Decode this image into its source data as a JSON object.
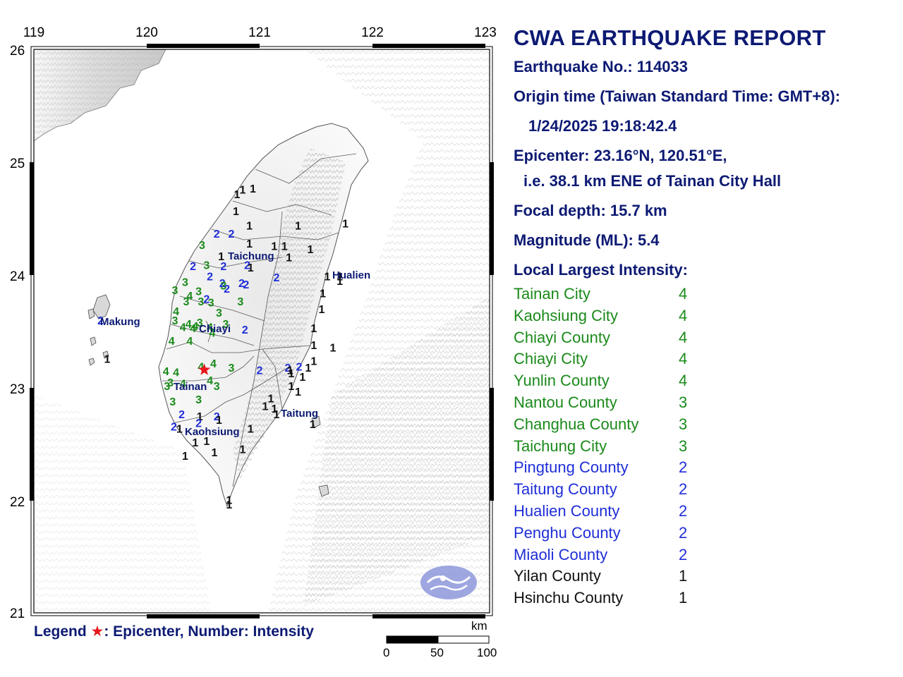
{
  "report": {
    "title": "CWA EARTHQUAKE REPORT",
    "earthquake_no": "Earthquake No.: 114033",
    "origin_time_label": "Origin time (Taiwan Standard Time: GMT+8):",
    "origin_time": "1/24/2025 19:18:42.4",
    "epicenter": "Epicenter: 23.16°N, 120.51°E,",
    "epicenter_ref": "i.e. 38.1 km ENE of Tainan City Hall",
    "focal_depth": "Focal depth: 15.7 km",
    "magnitude": "Magnitude (ML): 5.4",
    "intensity_heading": "Local Largest Intensity:"
  },
  "intensity_colors": {
    "4": "#1a8a1a",
    "3": "#1a8a1a",
    "2": "#1f2ed8",
    "1": "#111111"
  },
  "local_intensity": [
    {
      "region": "Tainan City",
      "value": "4"
    },
    {
      "region": "Kaohsiung City",
      "value": "4"
    },
    {
      "region": "Chiayi County",
      "value": "4"
    },
    {
      "region": "Chiayi City",
      "value": "4"
    },
    {
      "region": "Yunlin County",
      "value": "4"
    },
    {
      "region": "Nantou County",
      "value": "3"
    },
    {
      "region": "Changhua County",
      "value": "3"
    },
    {
      "region": "Taichung City",
      "value": "3"
    },
    {
      "region": "Pingtung County",
      "value": "2"
    },
    {
      "region": "Taitung County",
      "value": "2"
    },
    {
      "region": "Hualien County",
      "value": "2"
    },
    {
      "region": "Penghu County",
      "value": "2"
    },
    {
      "region": "Miaoli County",
      "value": "2"
    },
    {
      "region": "Yilan County",
      "value": "1"
    },
    {
      "region": "Hsinchu County",
      "value": "1"
    }
  ],
  "map": {
    "lon_ticks": [
      "119",
      "120",
      "121",
      "122",
      "123"
    ],
    "lat_ticks": [
      "26",
      "25",
      "24",
      "23",
      "22",
      "21"
    ],
    "cities": [
      "Taichung",
      "Hualien",
      "Makung",
      "Chiayi",
      "Tainan",
      "Taitung",
      "Kaohsiung"
    ],
    "epicenter_marker": "star",
    "stations": [
      {
        "lat": 24.76,
        "lon": 120.85,
        "v": "1"
      },
      {
        "lat": 24.77,
        "lon": 120.94,
        "v": "1"
      },
      {
        "lat": 24.72,
        "lon": 120.8,
        "v": "1"
      },
      {
        "lat": 24.57,
        "lon": 120.79,
        "v": "1"
      },
      {
        "lat": 24.44,
        "lon": 120.91,
        "v": "1"
      },
      {
        "lat": 24.44,
        "lon": 121.34,
        "v": "1"
      },
      {
        "lat": 24.46,
        "lon": 121.76,
        "v": "1"
      },
      {
        "lat": 24.37,
        "lon": 120.62,
        "v": "2"
      },
      {
        "lat": 24.37,
        "lon": 120.75,
        "v": "2"
      },
      {
        "lat": 24.27,
        "lon": 120.49,
        "v": "3"
      },
      {
        "lat": 24.28,
        "lon": 120.91,
        "v": "1"
      },
      {
        "lat": 24.26,
        "lon": 121.13,
        "v": "1"
      },
      {
        "lat": 24.26,
        "lon": 121.22,
        "v": "1"
      },
      {
        "lat": 24.23,
        "lon": 121.45,
        "v": "1"
      },
      {
        "lat": 24.17,
        "lon": 120.66,
        "v": "1"
      },
      {
        "lat": 24.16,
        "lon": 121.26,
        "v": "1"
      },
      {
        "lat": 24.08,
        "lon": 120.41,
        "v": "2"
      },
      {
        "lat": 24.09,
        "lon": 120.53,
        "v": "3"
      },
      {
        "lat": 24.08,
        "lon": 120.68,
        "v": "2"
      },
      {
        "lat": 24.09,
        "lon": 120.89,
        "v": "2"
      },
      {
        "lat": 24.07,
        "lon": 120.92,
        "v": "1"
      },
      {
        "lat": 23.99,
        "lon": 120.56,
        "v": "2"
      },
      {
        "lat": 23.98,
        "lon": 121.15,
        "v": "2"
      },
      {
        "lat": 23.99,
        "lon": 121.6,
        "v": "1"
      },
      {
        "lat": 23.99,
        "lon": 121.71,
        "v": "1"
      },
      {
        "lat": 23.95,
        "lon": 121.71,
        "v": "1"
      },
      {
        "lat": 23.94,
        "lon": 120.34,
        "v": "3"
      },
      {
        "lat": 23.93,
        "lon": 120.67,
        "v": "2"
      },
      {
        "lat": 23.93,
        "lon": 120.84,
        "v": "2"
      },
      {
        "lat": 23.91,
        "lon": 120.68,
        "v": "3"
      },
      {
        "lat": 23.92,
        "lon": 120.88,
        "v": "2"
      },
      {
        "lat": 23.88,
        "lon": 120.71,
        "v": "2"
      },
      {
        "lat": 23.87,
        "lon": 120.25,
        "v": "3"
      },
      {
        "lat": 23.86,
        "lon": 120.46,
        "v": "3"
      },
      {
        "lat": 23.84,
        "lon": 121.56,
        "v": "1"
      },
      {
        "lat": 23.82,
        "lon": 120.38,
        "v": "4"
      },
      {
        "lat": 23.79,
        "lon": 120.53,
        "v": "2"
      },
      {
        "lat": 23.77,
        "lon": 120.35,
        "v": "3"
      },
      {
        "lat": 23.77,
        "lon": 120.48,
        "v": "3"
      },
      {
        "lat": 23.76,
        "lon": 120.57,
        "v": "3"
      },
      {
        "lat": 23.77,
        "lon": 120.83,
        "v": "3"
      },
      {
        "lat": 23.7,
        "lon": 121.55,
        "v": "1"
      },
      {
        "lat": 23.68,
        "lon": 120.26,
        "v": "4"
      },
      {
        "lat": 23.67,
        "lon": 120.64,
        "v": "3"
      },
      {
        "lat": 23.6,
        "lon": 120.25,
        "v": "3"
      },
      {
        "lat": 23.57,
        "lon": 120.37,
        "v": "4"
      },
      {
        "lat": 23.58,
        "lon": 120.47,
        "v": "3"
      },
      {
        "lat": 23.57,
        "lon": 120.7,
        "v": "3"
      },
      {
        "lat": 23.54,
        "lon": 120.32,
        "v": "4"
      },
      {
        "lat": 23.53,
        "lon": 121.48,
        "v": "1"
      },
      {
        "lat": 23.53,
        "lon": 120.41,
        "v": "4"
      },
      {
        "lat": 23.55,
        "lon": 120.43,
        "v": "4"
      },
      {
        "lat": 23.54,
        "lon": 120.56,
        "v": "4"
      },
      {
        "lat": 23.52,
        "lon": 120.87,
        "v": "2"
      },
      {
        "lat": 23.49,
        "lon": 120.58,
        "v": "4"
      },
      {
        "lat": 23.42,
        "lon": 120.22,
        "v": "4"
      },
      {
        "lat": 23.42,
        "lon": 120.38,
        "v": "4"
      },
      {
        "lat": 23.38,
        "lon": 121.48,
        "v": "1"
      },
      {
        "lat": 23.36,
        "lon": 121.65,
        "v": "1"
      },
      {
        "lat": 23.24,
        "lon": 121.48,
        "v": "1"
      },
      {
        "lat": 23.22,
        "lon": 120.59,
        "v": "4"
      },
      {
        "lat": 23.19,
        "lon": 120.48,
        "v": "4"
      },
      {
        "lat": 23.18,
        "lon": 120.75,
        "v": "3"
      },
      {
        "lat": 23.18,
        "lon": 121.25,
        "v": "2"
      },
      {
        "lat": 23.19,
        "lon": 121.35,
        "v": "2"
      },
      {
        "lat": 23.18,
        "lon": 121.43,
        "v": "1"
      },
      {
        "lat": 23.16,
        "lon": 121.27,
        "v": "1"
      },
      {
        "lat": 23.16,
        "lon": 121.0,
        "v": "2"
      },
      {
        "lat": 23.15,
        "lon": 120.17,
        "v": "4"
      },
      {
        "lat": 23.14,
        "lon": 120.26,
        "v": "4"
      },
      {
        "lat": 23.13,
        "lon": 121.28,
        "v": "1"
      },
      {
        "lat": 23.1,
        "lon": 121.38,
        "v": "1"
      },
      {
        "lat": 23.07,
        "lon": 120.56,
        "v": "4"
      },
      {
        "lat": 23.05,
        "lon": 120.21,
        "v": "3"
      },
      {
        "lat": 23.04,
        "lon": 120.32,
        "v": "4"
      },
      {
        "lat": 23.02,
        "lon": 120.18,
        "v": "3"
      },
      {
        "lat": 23.02,
        "lon": 120.62,
        "v": "3"
      },
      {
        "lat": 23.02,
        "lon": 121.28,
        "v": "1"
      },
      {
        "lat": 22.97,
        "lon": 121.34,
        "v": "1"
      },
      {
        "lat": 22.91,
        "lon": 121.1,
        "v": "1"
      },
      {
        "lat": 22.9,
        "lon": 120.46,
        "v": "3"
      },
      {
        "lat": 22.88,
        "lon": 120.23,
        "v": "3"
      },
      {
        "lat": 22.84,
        "lon": 121.05,
        "v": "1"
      },
      {
        "lat": 22.82,
        "lon": 121.13,
        "v": "1"
      },
      {
        "lat": 22.77,
        "lon": 121.15,
        "v": "1"
      },
      {
        "lat": 22.77,
        "lon": 120.31,
        "v": "2"
      },
      {
        "lat": 22.75,
        "lon": 120.47,
        "v": "1"
      },
      {
        "lat": 22.75,
        "lon": 120.62,
        "v": "2"
      },
      {
        "lat": 22.72,
        "lon": 120.64,
        "v": "1"
      },
      {
        "lat": 22.69,
        "lon": 120.46,
        "v": "2"
      },
      {
        "lat": 22.68,
        "lon": 121.47,
        "v": "1"
      },
      {
        "lat": 22.66,
        "lon": 120.24,
        "v": "2"
      },
      {
        "lat": 22.64,
        "lon": 120.29,
        "v": "1"
      },
      {
        "lat": 22.64,
        "lon": 120.92,
        "v": "1"
      },
      {
        "lat": 22.53,
        "lon": 120.53,
        "v": "1"
      },
      {
        "lat": 22.52,
        "lon": 120.43,
        "v": "1"
      },
      {
        "lat": 22.46,
        "lon": 120.85,
        "v": "1"
      },
      {
        "lat": 22.4,
        "lon": 120.34,
        "v": "1"
      },
      {
        "lat": 22.43,
        "lon": 120.6,
        "v": "1"
      },
      {
        "lat": 22.01,
        "lon": 120.73,
        "v": "1"
      },
      {
        "lat": 21.97,
        "lon": 120.73,
        "v": "1"
      },
      {
        "lat": 23.6,
        "lon": 119.59,
        "v": "2"
      },
      {
        "lat": 23.26,
        "lon": 119.65,
        "v": "1"
      }
    ]
  },
  "legend": {
    "prefix": "Legend ",
    "text": ": Epicenter, Number: Intensity"
  },
  "scalebar": {
    "unit": "km",
    "ticks": [
      "0",
      "50",
      "100"
    ]
  }
}
